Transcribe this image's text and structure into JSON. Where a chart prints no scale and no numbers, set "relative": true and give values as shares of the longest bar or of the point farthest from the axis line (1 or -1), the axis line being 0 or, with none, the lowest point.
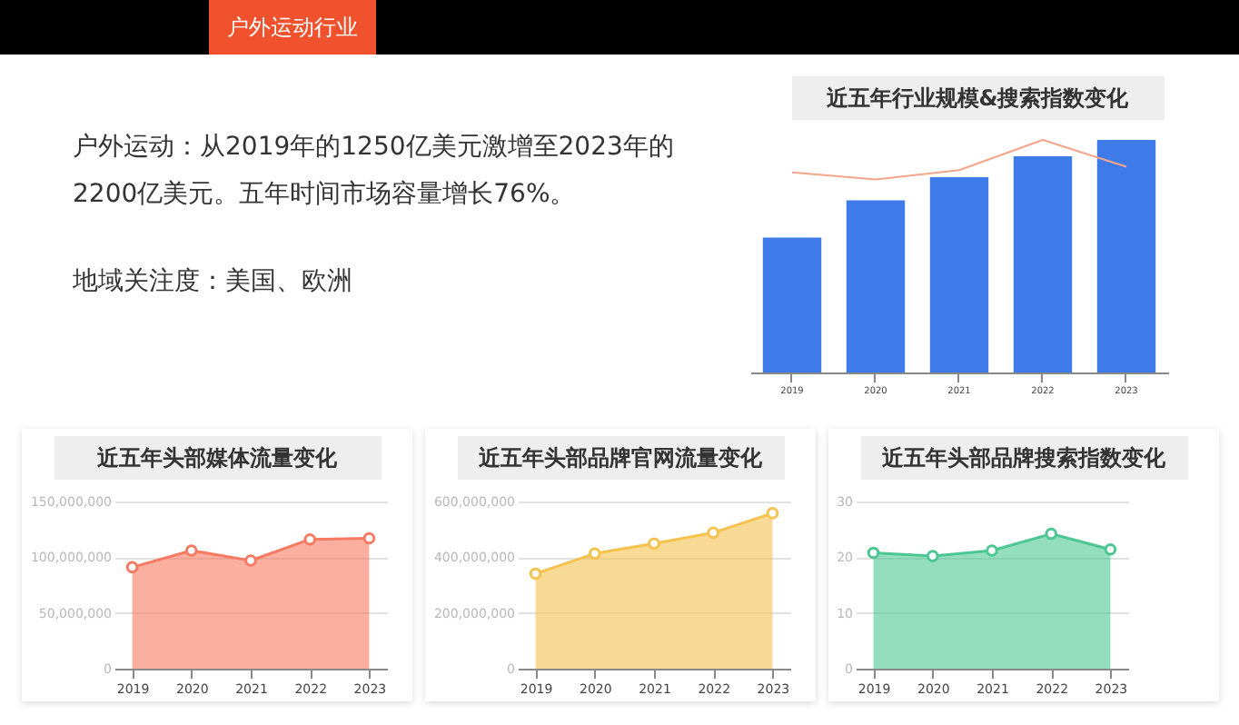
{
  "chart_data": [
    {
      "type": "other",
      "title": "户外运动行业",
      "annotations": [
        "户外运动：从2019年的1250亿美元激增至2023年的2200亿美元。五年时间市场容量增长76%。",
        "地域关注度：美国、欧洲"
      ]
    },
    {
      "type": "bar",
      "title": "近五年行业规模&搜索指数变化",
      "categories": [
        "2019",
        "2020",
        "2021",
        "2022",
        "2023"
      ],
      "relative": true,
      "series": [
        {
          "type": "bar",
          "color": "#3f7be8",
          "values": [
            0.58,
            0.74,
            0.84,
            0.93,
            1
          ]
        },
        {
          "type": "line",
          "color": "#f4a58a",
          "values": [
            0.86,
            0.83,
            0.87,
            1,
            0.885
          ]
        }
      ]
    },
    {
      "type": "area",
      "title": "近五年头部媒体流量变化",
      "categories": [
        "2019",
        "2020",
        "2021",
        "2022",
        "2023"
      ],
      "values": [
        91000000,
        106000000,
        97000000,
        116000000,
        117000000
      ],
      "color": "#f67a62",
      "ylim": [
        0,
        150000000
      ],
      "yticks": [
        0,
        {
          "value": 50000000,
          "label": "50,000,000"
        },
        {
          "value": 100000000,
          "label": "100,000,000"
        },
        {
          "value": 150000000,
          "label": "150,000,000"
        }
      ],
      "grid": "y",
      "marker": "circle"
    },
    {
      "type": "area",
      "title": "近五年头部品牌官网流量变化",
      "categories": [
        "2019",
        "2020",
        "2021",
        "2022",
        "2023"
      ],
      "values": [
        341000000,
        413000000,
        449000000,
        488000000,
        558000000
      ],
      "color": "#f5c24e",
      "ylim": [
        0,
        600000000
      ],
      "yticks": [
        0,
        {
          "value": 200000000,
          "label": "200,000,000"
        },
        {
          "value": 400000000,
          "label": "400,000,000"
        },
        {
          "value": 600000000,
          "label": "600,000,000"
        }
      ],
      "grid": "y",
      "marker": "circle"
    },
    {
      "type": "area",
      "title": "近五年头部品牌搜索指数变化",
      "categories": [
        "2019",
        "2020",
        "2021",
        "2022",
        "2023"
      ],
      "values": [
        20.8,
        20.2,
        21.2,
        24.2,
        21.4
      ],
      "color": "#4cc793",
      "ylim": [
        0,
        30
      ],
      "yticks": [
        0,
        10,
        20,
        30
      ],
      "grid": "y",
      "marker": "circle"
    }
  ]
}
